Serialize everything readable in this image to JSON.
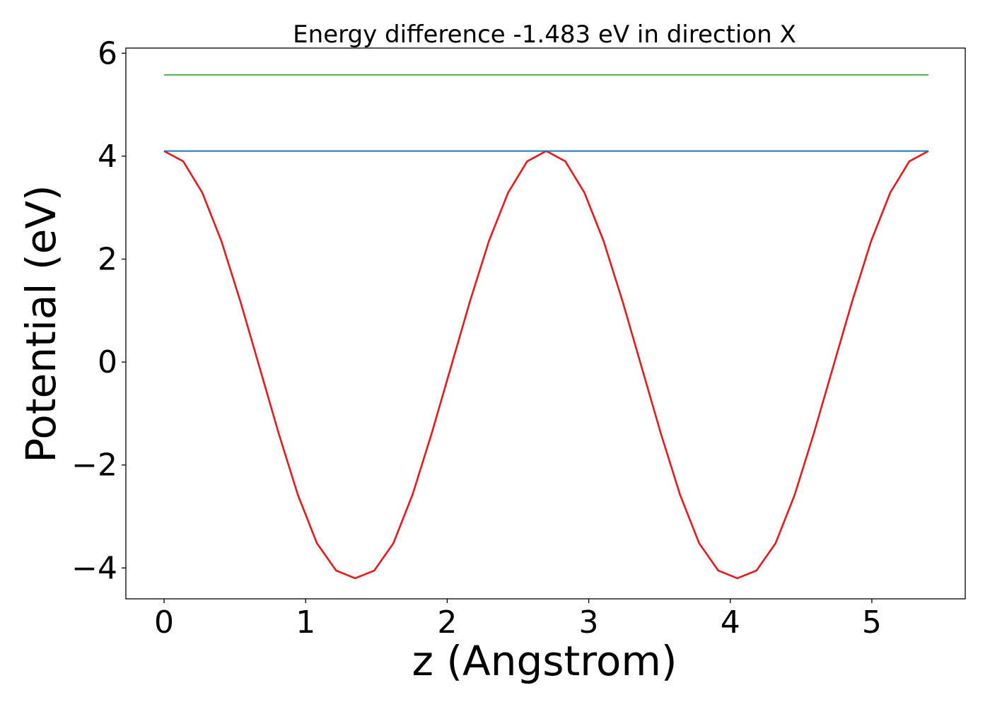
{
  "chart_data": {
    "type": "line",
    "title": "Energy difference -1.483 eV in direction X",
    "xlabel": "z (Angstrom)",
    "ylabel": "Potential (eV)",
    "xlim": [
      -0.27,
      5.66
    ],
    "ylim": [
      -4.6,
      6.1
    ],
    "xticks": [
      0,
      1,
      2,
      3,
      4,
      5
    ],
    "xtick_labels": [
      "0",
      "1",
      "2",
      "3",
      "4",
      "5"
    ],
    "yticks": [
      -4,
      -2,
      0,
      2,
      4,
      6
    ],
    "ytick_labels": [
      "−4",
      "−2",
      "0",
      "2",
      "4",
      "6"
    ],
    "grid": false,
    "legend": "none",
    "series": [
      {
        "color": "#e41a1c",
        "x": [
          0.0,
          0.135,
          0.27,
          0.405,
          0.54,
          0.675,
          0.81,
          0.945,
          1.08,
          1.215,
          1.35,
          1.485,
          1.62,
          1.755,
          1.89,
          2.025,
          2.16,
          2.295,
          2.43,
          2.565,
          2.7,
          2.835,
          2.97,
          3.105,
          3.24,
          3.375,
          3.51,
          3.645,
          3.78,
          3.915,
          4.05,
          4.185,
          4.32,
          4.455,
          4.59,
          4.725,
          4.86,
          4.995,
          5.13,
          5.265,
          5.4
        ],
        "y": [
          4.1,
          3.9,
          3.29,
          2.35,
          1.17,
          -0.11,
          -1.39,
          -2.58,
          -3.52,
          -4.05,
          -4.2,
          -4.05,
          -3.52,
          -2.58,
          -1.39,
          -0.11,
          1.17,
          2.35,
          3.29,
          3.9,
          4.1,
          3.9,
          3.29,
          2.35,
          1.17,
          -0.11,
          -1.39,
          -2.58,
          -3.52,
          -4.05,
          -4.2,
          -4.05,
          -3.52,
          -2.58,
          -1.39,
          -0.11,
          1.17,
          2.35,
          3.29,
          3.9,
          4.1
        ]
      },
      {
        "color": "#1f77b4",
        "x": [
          0.0,
          5.4
        ],
        "y": [
          4.1,
          4.1
        ]
      },
      {
        "color": "#4daf4a",
        "x": [
          0.0,
          5.4
        ],
        "y": [
          5.58,
          5.58
        ]
      }
    ]
  }
}
